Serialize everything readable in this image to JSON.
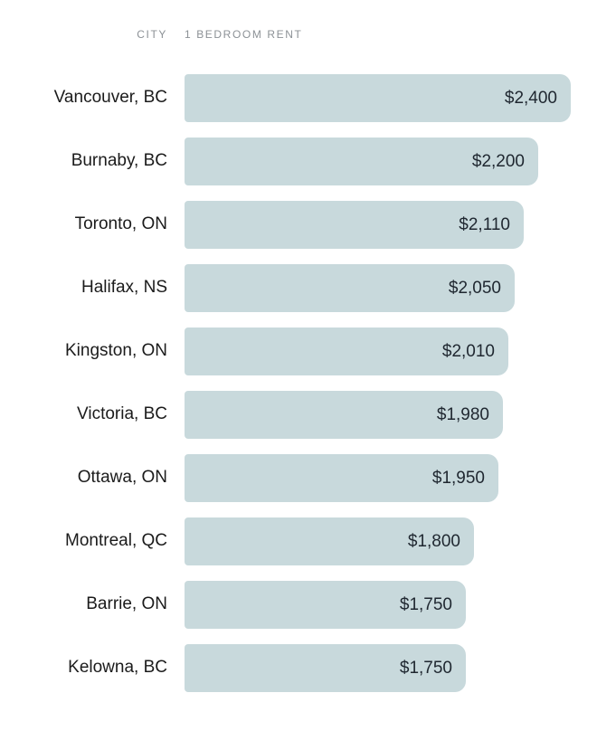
{
  "header": {
    "city_label": "CITY",
    "rent_label": "1 BEDROOM RENT"
  },
  "colors": {
    "background": "#ffffff",
    "bar": "#c8d9dc",
    "header_text": "#8c9196",
    "label_text": "#1b1b1b",
    "value_text": "#1f2730"
  },
  "chart_data": {
    "type": "bar",
    "orientation": "horizontal",
    "title": "",
    "xlabel": "1 BEDROOM RENT",
    "ylabel": "CITY",
    "categories": [
      "Vancouver, BC",
      "Burnaby, BC",
      "Toronto, ON",
      "Halifax, NS",
      "Kingston, ON",
      "Victoria, BC",
      "Ottawa, ON",
      "Montreal, QC",
      "Barrie, ON",
      "Kelowna, BC"
    ],
    "values": [
      2400,
      2200,
      2110,
      2050,
      2010,
      1980,
      1950,
      1800,
      1750,
      1750
    ],
    "value_labels": [
      "$2,400",
      "$2,200",
      "$2,110",
      "$2,050",
      "$2,010",
      "$1,980",
      "$1,950",
      "$1,800",
      "$1,750",
      "$1,750"
    ],
    "xlim": [
      0,
      2400
    ],
    "grid": false,
    "legend": null,
    "bar_color": "#c8d9dc",
    "value_label_position": "inside-right"
  }
}
